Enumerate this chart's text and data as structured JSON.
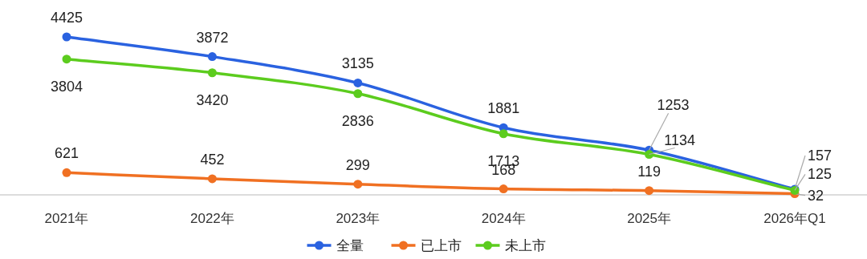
{
  "chart_data": {
    "type": "line",
    "categories": [
      "2021年",
      "2022年",
      "2023年",
      "2024年",
      "2025年",
      "2026年Q1"
    ],
    "series": [
      {
        "name": "全量",
        "color": "#2a62e0",
        "values": [
          4425,
          3872,
          3135,
          1881,
          1253,
          157
        ]
      },
      {
        "name": "已上市",
        "color": "#f07022",
        "values": [
          621,
          452,
          299,
          168,
          119,
          32
        ]
      },
      {
        "name": "未上市",
        "color": "#5ccc1e",
        "values": [
          3804,
          3420,
          2836,
          1713,
          1134,
          125
        ]
      }
    ],
    "data_labels": true,
    "legend": "bottom",
    "marker": "circle",
    "line_style": "solid",
    "grid": false
  }
}
